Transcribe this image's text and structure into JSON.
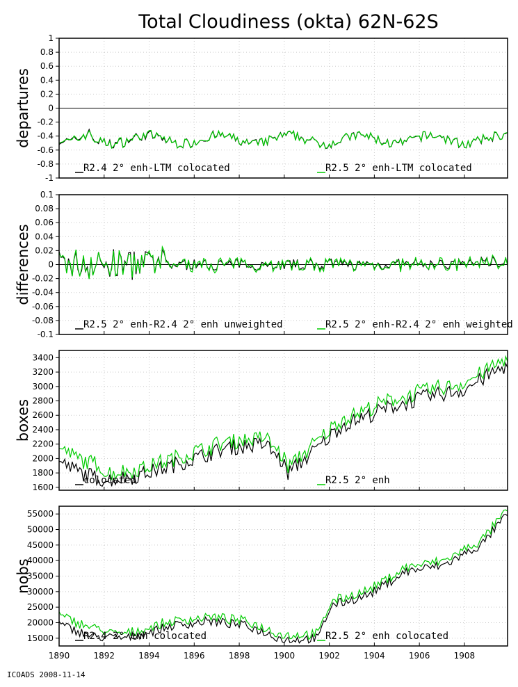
{
  "title": "Total Cloudiness (okta) 62N-62S",
  "footer": "ICOADS 2008-11-14",
  "colors": {
    "series_a": "#000000",
    "series_b": "#00cc00"
  },
  "chart_data": [
    {
      "type": "line",
      "ylabel": "departures",
      "ylim": [
        -1,
        1
      ],
      "yticks": [
        "1",
        "0.8",
        "0.6",
        "0.4",
        "0.2",
        "0",
        "-0.2",
        "-0.4",
        "-0.6",
        "-0.8",
        "-1"
      ],
      "ytick_values": [
        1,
        0.8,
        0.6,
        0.4,
        0.2,
        0,
        -0.2,
        -0.4,
        -0.6,
        -0.8,
        -1
      ],
      "zero_line": true,
      "series": [
        {
          "name": "R2.4 2° enh-LTM colocated",
          "generator": "departures_a"
        },
        {
          "name": "R2.5 2° enh-LTM colocated",
          "generator": "departures_b"
        }
      ]
    },
    {
      "type": "line",
      "ylabel": "differences",
      "ylim": [
        -0.1,
        0.1
      ],
      "yticks": [
        "0.1",
        "0.08",
        "0.06",
        "0.04",
        "0.02",
        "0",
        "-0.02",
        "-0.04",
        "-0.06",
        "-0.08",
        "-0.1"
      ],
      "ytick_values": [
        0.1,
        0.08,
        0.06,
        0.04,
        0.02,
        0,
        -0.02,
        -0.04,
        -0.06,
        -0.08,
        -0.1
      ],
      "zero_line": true,
      "series": [
        {
          "name": "R2.5 2° enh-R2.4 2° enh unweighted",
          "generator": "diff_a"
        },
        {
          "name": "R2.5 2° enh-R2.4 2° enh weighted",
          "generator": "diff_b"
        }
      ]
    },
    {
      "type": "line",
      "ylabel": "boxes",
      "ylim": [
        1560,
        3500
      ],
      "yticks": [
        "3400",
        "3200",
        "3000",
        "2800",
        "2600",
        "2400",
        "2200",
        "2000",
        "1800",
        "1600"
      ],
      "ytick_values": [
        3400,
        3200,
        3000,
        2800,
        2600,
        2400,
        2200,
        2000,
        1800,
        1600
      ],
      "zero_line": false,
      "series": [
        {
          "name": "colocated",
          "generator": "boxes_a"
        },
        {
          "name": "R2.5 2° enh",
          "generator": "boxes_b"
        }
      ]
    },
    {
      "type": "line",
      "ylabel": "nobs",
      "ylim": [
        12500,
        57500
      ],
      "yticks": [
        "55000",
        "50000",
        "45000",
        "40000",
        "35000",
        "30000",
        "25000",
        "20000",
        "15000"
      ],
      "ytick_values": [
        55000,
        50000,
        45000,
        40000,
        35000,
        30000,
        25000,
        20000,
        15000
      ],
      "zero_line": false,
      "series": [
        {
          "name": "R2.4 2° enh colocated",
          "generator": "nobs_a"
        },
        {
          "name": "R2.5 2° enh colocated",
          "generator": "nobs_b"
        }
      ]
    }
  ],
  "x_axis": {
    "xlim": [
      1890,
      1909.917
    ],
    "ticks": [
      "1890",
      "1892",
      "1894",
      "1896",
      "1898",
      "1900",
      "1902",
      "1904",
      "1906",
      "1908"
    ],
    "tick_values": [
      1890,
      1892,
      1894,
      1896,
      1898,
      1900,
      1902,
      1904,
      1906,
      1908
    ],
    "months": 240
  }
}
